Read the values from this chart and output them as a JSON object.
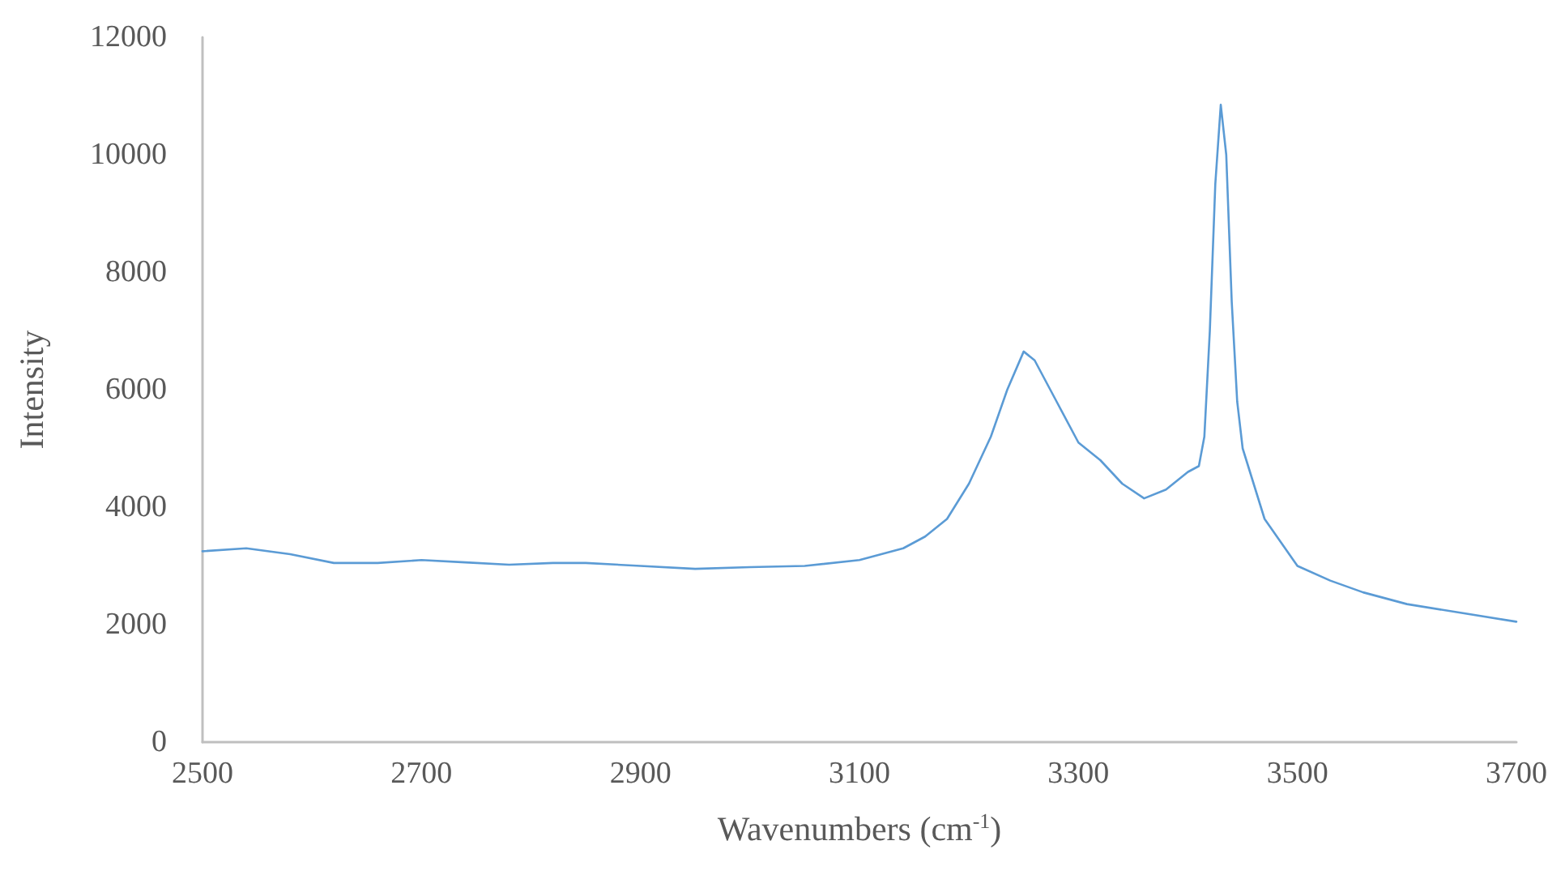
{
  "chart_data": {
    "type": "line",
    "xlabel": "Wavenumbers (cm$^{-1}$)",
    "ylabel": "Intensity",
    "x": [
      2500,
      2540,
      2580,
      2620,
      2660,
      2700,
      2740,
      2780,
      2820,
      2850,
      2900,
      2950,
      3000,
      3050,
      3100,
      3140,
      3160,
      3180,
      3200,
      3220,
      3235,
      3250,
      3260,
      3280,
      3300,
      3320,
      3340,
      3360,
      3380,
      3400,
      3410,
      3415,
      3420,
      3425,
      3430,
      3435,
      3440,
      3445,
      3450,
      3470,
      3500,
      3530,
      3560,
      3600,
      3650,
      3700
    ],
    "series": [
      {
        "color": "#5b9bd5",
        "values": [
          3250,
          3300,
          3200,
          3050,
          3050,
          3100,
          3060,
          3020,
          3050,
          3050,
          3000,
          2950,
          2980,
          3000,
          3100,
          3300,
          3500,
          3800,
          4400,
          5200,
          6000,
          6650,
          6500,
          5800,
          5100,
          4800,
          4400,
          4150,
          4300,
          4600,
          4700,
          5200,
          7000,
          9500,
          10850,
          10000,
          7500,
          5800,
          5000,
          3800,
          3000,
          2750,
          2550,
          2350,
          2200,
          2050
        ]
      }
    ],
    "xlim": [
      2500,
      3700
    ],
    "xticks": [
      2500,
      2700,
      2900,
      3100,
      3300,
      3500,
      3700
    ],
    "ylim": [
      0,
      12000
    ],
    "yticks": [
      0,
      2000,
      4000,
      6000,
      8000,
      10000,
      12000
    ],
    "marker": "none",
    "line_style": "solid"
  }
}
